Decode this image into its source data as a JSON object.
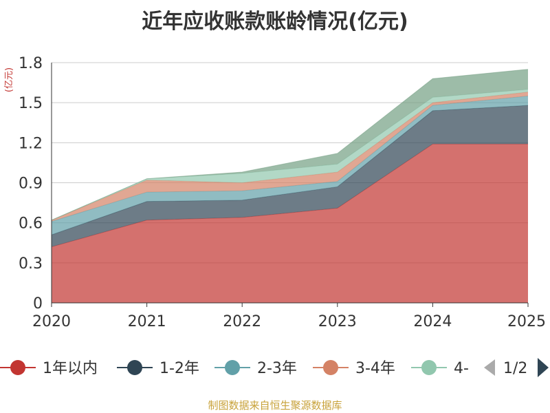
{
  "chart_data": {
    "type": "area",
    "stacked": true,
    "title": "近年应收账款账龄情况(亿元)",
    "ylabel": "(亿元)",
    "xlabel": "",
    "ylim": [
      0,
      1.8
    ],
    "yticks": [
      "0",
      "0.3",
      "0.6",
      "0.9",
      "1.2",
      "1.5",
      "1.8"
    ],
    "ytick_values": [
      0,
      0.3,
      0.6,
      0.9,
      1.2,
      1.5,
      1.8
    ],
    "categories": [
      "2020",
      "2021",
      "2022",
      "2023",
      "2024",
      "2025"
    ],
    "grid": true,
    "legend_position": "bottom",
    "series": [
      {
        "name": "1年以内",
        "color": "#c23531",
        "values": [
          0.42,
          0.62,
          0.64,
          0.71,
          1.19,
          1.19
        ]
      },
      {
        "name": "1-2年",
        "color": "#2f4554",
        "values": [
          0.09,
          0.14,
          0.13,
          0.16,
          0.25,
          0.29
        ]
      },
      {
        "name": "2-3年",
        "color": "#61a0a8",
        "values": [
          0.1,
          0.07,
          0.07,
          0.04,
          0.04,
          0.07
        ]
      },
      {
        "name": "3-4年",
        "color": "#d48265",
        "values": [
          0.01,
          0.09,
          0.06,
          0.07,
          0.02,
          0.03
        ]
      },
      {
        "name": "4-",
        "color": "#91c7ae",
        "values": [
          0.0,
          0.01,
          0.07,
          0.06,
          0.04,
          0.02
        ]
      },
      {
        "name": "",
        "color": "#749f83",
        "values": [
          0.0,
          0.0,
          0.01,
          0.08,
          0.14,
          0.15
        ]
      }
    ],
    "legend_items": [
      "1年以内",
      "1-2年",
      "2-3年",
      "3-4年",
      "4-"
    ],
    "legend_page": "1/2"
  },
  "colors": {
    "legend_arrow_prev": "#aaaaaa",
    "legend_arrow_next": "#2f4554",
    "grid": "#cccccc",
    "axis": "#333333"
  },
  "footer": {
    "source": "制图数据来自恒生聚源数据库"
  }
}
